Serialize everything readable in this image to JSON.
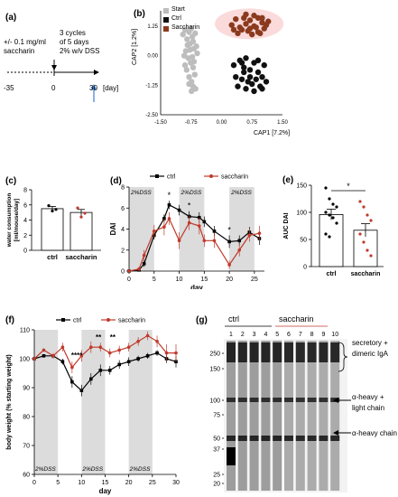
{
  "panels": {
    "a": {
      "label": "(a)",
      "treatment": "+/- 0.1 mg/ml",
      "treatment2": "saccharin",
      "cycles1": "3 cycles",
      "cycles2": "of 5 days",
      "cycles3": "2% w/v DSS",
      "t_start": "-35",
      "t_zero": "0",
      "t_end": "30",
      "t_unit": "[day]"
    },
    "b": {
      "label": "(b)",
      "legend": [
        "Start",
        "Ctrl",
        "Saccharin"
      ],
      "xlabel": "CAP1 [7.2%]",
      "ylabel": "CAP2 [1.2%]",
      "xticks": [
        "-1.50",
        "-0.75",
        "0.00",
        "0.75",
        "1.50"
      ],
      "yticks": [
        "1.25",
        "0.00",
        "-1.25",
        "-2.50"
      ]
    },
    "c": {
      "label": "(c)",
      "ylabel": "water consumption\n[ml/mouse/day]",
      "yticks": [
        "8",
        "6",
        "4",
        "2",
        "0"
      ],
      "categories": [
        "ctrl",
        "saccharin"
      ]
    },
    "d": {
      "label": "(d)",
      "legend": [
        "ctrl",
        "saccharin"
      ],
      "dss_label": "2%DSS",
      "ylabel": "DAI",
      "xlabel": "day",
      "yticks": [
        "8",
        "6",
        "4",
        "2",
        "0"
      ],
      "xticks": [
        "0",
        "5",
        "10",
        "15",
        "20",
        "25"
      ],
      "stars": "*"
    },
    "e": {
      "label": "(e)",
      "ylabel": "AUC DAI",
      "yticks": [
        "150",
        "100",
        "50",
        "0"
      ],
      "categories": [
        "ctrl",
        "saccharin"
      ],
      "sig": "*"
    },
    "f": {
      "label": "(f)",
      "legend": [
        "ctrl",
        "saccharin"
      ],
      "dss_label": "2%DSS",
      "ylabel": "body weight (% starting weight)",
      "xlabel": "day",
      "yticks": [
        "110",
        "100",
        "90",
        "80",
        "70",
        "60"
      ],
      "xticks": [
        "0",
        "5",
        "10",
        "15",
        "20",
        "25",
        "30"
      ],
      "sig1": "****",
      "sig2": "**",
      "sig3": "**"
    },
    "g": {
      "label": "(g)",
      "group1": "ctrl",
      "group2": "saccharin",
      "lanes": [
        "1",
        "2",
        "3",
        "4",
        "5",
        "6",
        "7",
        "8",
        "9",
        "10"
      ],
      "mw": [
        "250",
        "150",
        "100",
        "75",
        "50",
        "37",
        "25",
        "20"
      ],
      "ann1": "secretory +",
      "ann1b": "dimeric IgA",
      "ann2": "α-heavy +",
      "ann2b": "light chain",
      "ann3": "α-heavy chain"
    }
  },
  "chart_data": [
    {
      "type": "scatter",
      "panel": "b",
      "xlabel": "CAP1 [7.2%]",
      "ylabel": "CAP2 [1.2%]",
      "xlim": [
        -1.5,
        1.5
      ],
      "ylim": [
        -2.5,
        1.9
      ],
      "series": [
        {
          "name": "Start",
          "color": "#bdbdbd",
          "x": [
            -0.95,
            -0.9,
            -0.85,
            -0.8,
            -0.78,
            -0.75,
            -0.72,
            -0.7,
            -0.68,
            -0.65,
            -0.62,
            -0.6,
            -0.88,
            -0.82,
            -0.76,
            -0.7,
            -0.66,
            -0.92,
            -0.86,
            -0.8,
            -0.74,
            -0.7,
            -0.64,
            -0.84,
            -0.78,
            -0.72,
            -0.68,
            -0.9,
            -0.8,
            -0.74
          ],
          "y": [
            0.9,
            1.1,
            0.7,
            1.0,
            0.5,
            1.15,
            0.8,
            0.6,
            0.3,
            0.95,
            0.4,
            0.1,
            0.2,
            -0.1,
            -0.3,
            -0.5,
            -0.8,
            0.0,
            -0.6,
            -0.9,
            -1.1,
            -1.3,
            -1.4,
            0.45,
            0.25,
            -0.05,
            -0.25,
            -0.4,
            -1.2,
            -1.5
          ]
        },
        {
          "name": "Ctrl",
          "color": "#111111",
          "x": [
            0.3,
            0.45,
            0.55,
            0.6,
            0.7,
            0.8,
            0.9,
            1.0,
            1.05,
            0.35,
            0.5,
            0.65,
            0.75,
            0.85,
            0.95,
            1.1,
            0.4,
            0.6,
            0.8,
            1.0,
            0.55,
            0.7,
            0.9,
            0.5
          ],
          "y": [
            -0.4,
            -0.2,
            -0.5,
            -0.1,
            -0.6,
            -0.3,
            -0.7,
            -0.9,
            -0.4,
            -0.9,
            -1.0,
            -1.1,
            -1.2,
            -1.0,
            -1.3,
            -1.1,
            -1.3,
            -1.4,
            -1.5,
            -1.4,
            -0.7,
            -0.9,
            -0.2,
            -0.3
          ]
        },
        {
          "name": "Saccharin",
          "color": "#8b3a1e",
          "x": [
            0.25,
            0.35,
            0.45,
            0.55,
            0.6,
            0.7,
            0.8,
            0.9,
            1.0,
            1.05,
            1.15,
            0.4,
            0.5,
            0.65,
            0.75,
            0.85,
            0.95,
            1.1,
            0.3,
            0.6,
            0.8,
            1.0,
            0.7,
            0.9
          ],
          "y": [
            1.3,
            1.55,
            1.2,
            1.6,
            1.35,
            1.5,
            1.25,
            1.6,
            1.4,
            1.15,
            1.45,
            0.95,
            1.1,
            1.05,
            0.9,
            1.2,
            0.95,
            1.3,
            1.1,
            1.75,
            1.7,
            1.6,
            1.15,
            1.0
          ]
        }
      ]
    },
    {
      "type": "bar",
      "panel": "c",
      "categories": [
        "ctrl",
        "saccharin"
      ],
      "values": [
        5.5,
        5.0
      ],
      "errors": [
        0.3,
        0.4
      ],
      "points": [
        [
          5.9,
          5.2,
          5.4
        ],
        [
          5.6,
          4.4,
          4.9
        ]
      ],
      "ylim": [
        0,
        8
      ]
    },
    {
      "type": "line",
      "panel": "d",
      "xlabel": "day",
      "ylabel": "DAI",
      "ylim": [
        0,
        8
      ],
      "xlim": [
        0,
        27
      ],
      "dss_windows": [
        [
          0,
          5
        ],
        [
          10,
          15
        ],
        [
          20,
          25
        ]
      ],
      "series": [
        {
          "name": "ctrl",
          "color": "#000000",
          "x": [
            0,
            2,
            3,
            5,
            7,
            8,
            10,
            12,
            14,
            15,
            17,
            20,
            22,
            24,
            26
          ],
          "y": [
            0,
            0.1,
            0.7,
            3.4,
            5.0,
            6.3,
            5.8,
            5.2,
            5.1,
            4.7,
            3.8,
            2.8,
            2.9,
            3.7,
            3.1
          ],
          "err": [
            0,
            0.1,
            0.3,
            0.4,
            0.4,
            0.4,
            0.5,
            0.5,
            0.5,
            0.5,
            0.5,
            0.6,
            0.5,
            0.5,
            0.6
          ]
        },
        {
          "name": "saccharin",
          "color": "#c0392b",
          "x": [
            0,
            2,
            3,
            5,
            7,
            8,
            10,
            12,
            14,
            15,
            17,
            20,
            22,
            24,
            26
          ],
          "y": [
            0,
            0.2,
            1.5,
            3.8,
            4.2,
            5.0,
            2.9,
            4.6,
            4.3,
            2.9,
            2.9,
            0.6,
            2.0,
            3.4,
            3.6
          ],
          "err": [
            0,
            0.2,
            0.5,
            0.6,
            0.8,
            0.6,
            0.8,
            0.7,
            0.8,
            0.6,
            0.7,
            0.4,
            0.6,
            0.6,
            0.7
          ]
        }
      ],
      "stars_at": [
        8,
        12,
        20
      ]
    },
    {
      "type": "bar",
      "panel": "e",
      "categories": [
        "ctrl",
        "saccharin"
      ],
      "values": [
        96,
        67
      ],
      "errors": [
        10,
        12
      ],
      "points": [
        [
          145,
          125,
          115,
          110,
          100,
          95,
          90,
          80,
          60,
          55
        ],
        [
          120,
          110,
          95,
          85,
          60,
          45,
          30,
          20
        ]
      ],
      "ylim": [
        0,
        150
      ]
    },
    {
      "type": "line",
      "panel": "f",
      "xlabel": "day",
      "ylabel": "body weight (% starting weight)",
      "ylim": [
        60,
        110
      ],
      "xlim": [
        0,
        30
      ],
      "dss_windows": [
        [
          5,
          10
        ],
        [
          15,
          20
        ],
        [
          25,
          30
        ]
      ],
      "series": [
        {
          "name": "ctrl",
          "color": "#000000",
          "x": [
            0,
            2,
            4,
            6,
            8,
            10,
            12,
            14,
            16,
            18,
            20,
            22,
            24,
            26,
            28,
            30
          ],
          "y": [
            100,
            101,
            101,
            99,
            92,
            89,
            93,
            96,
            96,
            98,
            99,
            100,
            101,
            102,
            100,
            99
          ],
          "err": [
            0,
            0.5,
            0.5,
            1,
            2,
            2,
            2,
            2,
            1.5,
            1.5,
            1.5,
            1,
            1,
            1,
            1.5,
            2
          ]
        },
        {
          "name": "saccharin",
          "color": "#c0392b",
          "x": [
            0,
            2,
            4,
            6,
            8,
            10,
            12,
            14,
            16,
            18,
            20,
            22,
            24,
            26,
            28,
            30
          ],
          "y": [
            100,
            103,
            101,
            104,
            97,
            101,
            104,
            104,
            102,
            103,
            104,
            106,
            108,
            106,
            102,
            102
          ],
          "err": [
            0,
            0.5,
            1,
            1.5,
            2,
            2,
            2,
            1.5,
            1.5,
            1.5,
            1.5,
            1.5,
            1.5,
            2,
            3,
            3
          ]
        }
      ]
    }
  ]
}
